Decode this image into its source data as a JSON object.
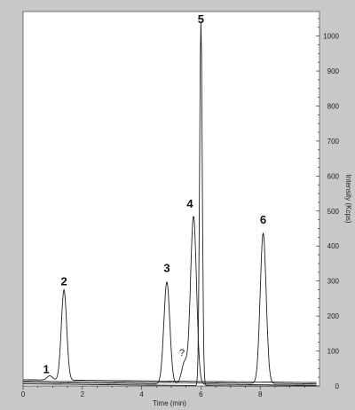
{
  "chart_data": {
    "type": "line",
    "title": "",
    "xlabel": "Time (min)",
    "ylabel": "Intensity (Kcps)",
    "xlim": [
      0,
      10
    ],
    "ylim": [
      0,
      1070
    ],
    "x_ticks": [
      0,
      2,
      4,
      6,
      8
    ],
    "y_ticks": [
      0,
      100,
      200,
      300,
      400,
      500,
      600,
      700,
      800,
      900,
      1000
    ],
    "x_tick_labels": [
      "0",
      "2",
      "4",
      "6",
      "8"
    ],
    "y_tick_labels": [
      "0",
      "100",
      "200",
      "300",
      "400",
      "500",
      "600",
      "700",
      "800",
      "900",
      "1000"
    ],
    "y_axis_side": "right",
    "grid": false,
    "series": [
      {
        "peaks": [
          {
            "label": "1",
            "time": 0.9,
            "height": 12
          },
          {
            "label": "2",
            "time": 1.38,
            "height": 258
          }
        ]
      },
      {
        "peaks": [
          {
            "label": "3",
            "time": 4.85,
            "height": 292
          },
          {
            "label": "?",
            "time": 5.45,
            "height": 62
          },
          {
            "label": "4",
            "time": 5.75,
            "height": 480
          }
        ]
      },
      {
        "peaks": [
          {
            "label": "5",
            "time": 6.0,
            "height": 1040
          }
        ]
      },
      {
        "peaks": [
          {
            "label": "6",
            "time": 8.1,
            "height": 430
          }
        ]
      }
    ]
  }
}
